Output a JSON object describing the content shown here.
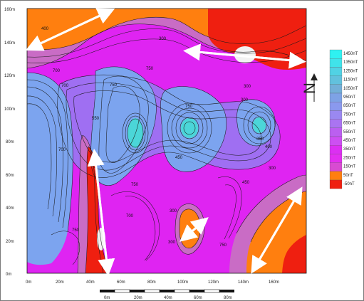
{
  "map": {
    "y_tick_labels": [
      "0m",
      "20m",
      "40m",
      "60m",
      "80m",
      "100m",
      "120m",
      "140m",
      "160m"
    ],
    "x_tick_labels": [
      "0m",
      "20m",
      "40m",
      "60m",
      "80m",
      "100m",
      "120m",
      "140m",
      "160m"
    ],
    "contour_labels": [
      "400",
      "700",
      "700",
      "750",
      "750",
      "300",
      "750",
      "300",
      "700",
      "550",
      "300",
      "350",
      "400",
      "300",
      "450",
      "750",
      "700",
      "450",
      "750",
      "300",
      "750",
      "300"
    ],
    "north_label": "N",
    "colors": {
      "low_white": "#f2f2f2",
      "red": "#ef1f10",
      "orange": "#ff7f0f",
      "pink_purple": "#c96cc5",
      "magenta": "#df24f2",
      "violet": "#9f6ff2",
      "blue": "#7ca4ef",
      "cyan": "#4bd6d8",
      "arrow": "#ffffff"
    }
  },
  "legend": {
    "labels": [
      "1450nT",
      "1350nT",
      "1250nT",
      "1150nT",
      "1050nT",
      "950nT",
      "850nT",
      "750nT",
      "650nT",
      "550nT",
      "450nT",
      "350nT",
      "250nT",
      "150nT",
      "50nT",
      "-50nT"
    ],
    "colors": [
      "#2ff1f1",
      "#40e3ea",
      "#51d2e4",
      "#62c1dd",
      "#73afd8",
      "#7ea2e5",
      "#8a99ee",
      "#9a88f0",
      "#aa74f1",
      "#bb5ff0",
      "#cd4ff2",
      "#dc2ff2",
      "#e22ff0",
      "#d84bd2",
      "#ff7f0f",
      "#ef1f10"
    ]
  },
  "scale_bar": {
    "labels": [
      "0m",
      "20m",
      "40m",
      "60m",
      "80m"
    ]
  }
}
